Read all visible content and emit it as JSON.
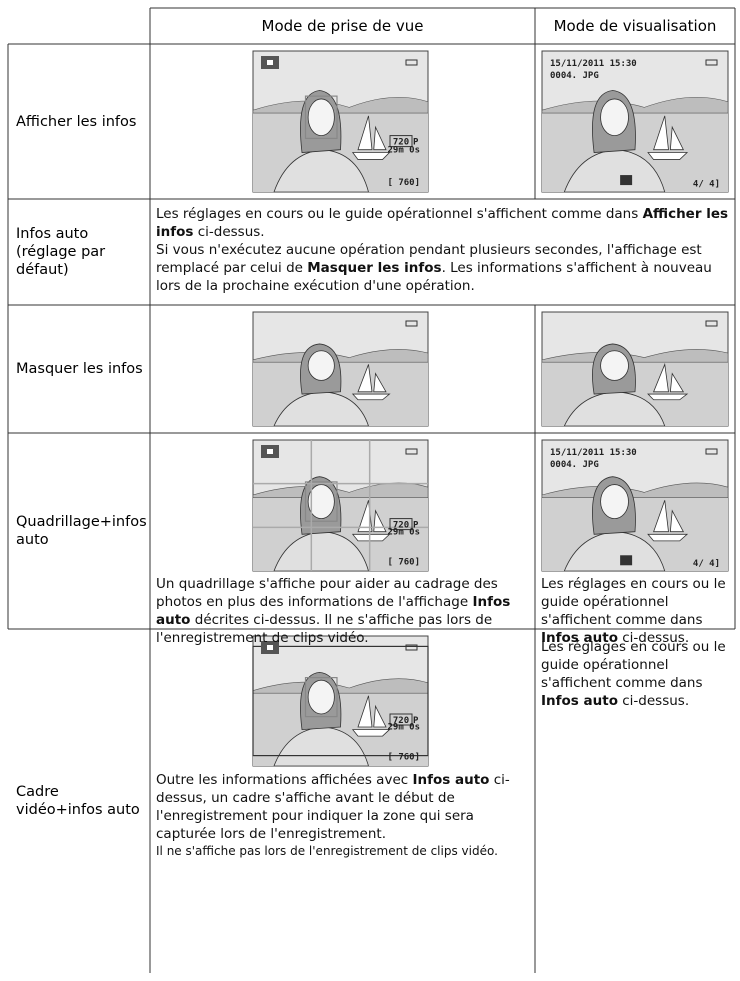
{
  "header": {
    "col2": "Mode de prise de vue",
    "col3": "Mode de visualisation"
  },
  "overlay": {
    "date": "15/11/2011 15:30",
    "file": "0004. JPG",
    "time": "29m 0s",
    "shots": "[ 760]",
    "count": "4/  4]",
    "res": "720",
    "res_suffix": "P"
  },
  "rows": [
    {
      "label": [
        "Afficher les infos"
      ]
    },
    {
      "label": [
        "Infos auto",
        "(réglage par",
        "défaut)"
      ],
      "text": [
        [
          "Les réglages en cours ou le guide opérationnel s'affichent comme dans ",
          {
            "b": "Afficher les infos"
          },
          " ci-dessus."
        ],
        [
          "Si vous n'exécutez aucune opération pendant plusieurs secondes, l'affichage est remplacé par celui de ",
          {
            "b": "Masquer les infos"
          },
          ". Les informations s'affichent à nouveau lors de la prochaine exécution d'une opération."
        ]
      ]
    },
    {
      "label": [
        "Masquer les infos"
      ]
    },
    {
      "label": [
        "Quadrillage+infos",
        "auto"
      ],
      "shoot_text": [
        [
          "Un quadrillage s'affiche pour aider au cadrage des photos en plus des informations de l'affichage ",
          {
            "b": "Infos auto"
          },
          " décrites ci-dessus. Il ne s'affiche pas lors de l'enregistrement de clips vidéo."
        ]
      ],
      "play_text": [
        [
          "Les réglages en cours ou le guide opérationnel s'affichent comme dans ",
          {
            "b": "Infos auto"
          },
          " ci-dessus."
        ]
      ]
    },
    {
      "label": [
        "Cadre",
        "vidéo+infos auto"
      ],
      "shoot_text": [
        [
          "Outre les informations affichées avec ",
          {
            "b": "Infos auto"
          },
          " ci-dessus, un cadre s'affiche avant le début de l'enregistrement pour indiquer la zone qui sera capturée lors de l'enregistrement."
        ],
        [
          "Il ne s'affiche pas lors de l'enregistrement de clips vidéo."
        ]
      ],
      "play_text": [
        [
          "Les réglages en cours ou le guide opérationnel s'affichent comme dans ",
          {
            "b": "Infos auto"
          },
          " ci-dessus."
        ]
      ]
    }
  ]
}
